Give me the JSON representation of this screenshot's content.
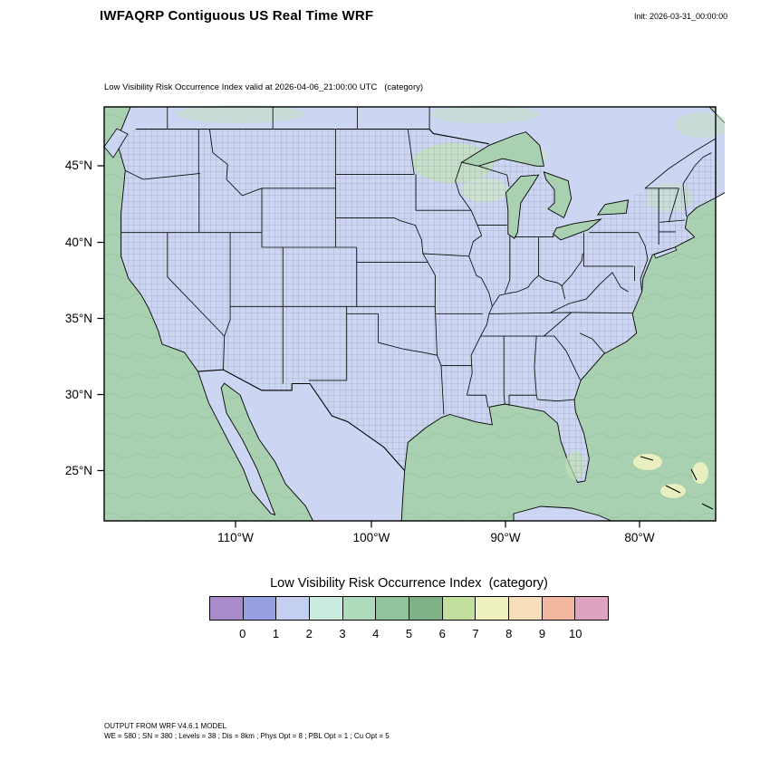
{
  "header": {
    "title": "IWFAQRP Contiguous US Real Time WRF",
    "init_label": "Init: 2026-03-31_00:00:00"
  },
  "map": {
    "subtitle": "Low Visibility Risk Occurrence Index valid at 2026-04-06_21:00:00 UTC   (category)",
    "y_tick_labels": [
      "45°N",
      "40°N",
      "35°N",
      "30°N",
      "25°N"
    ],
    "x_tick_labels": [
      "110°W",
      "100°W",
      "90°W",
      "80°W"
    ]
  },
  "map_colors": {
    "ocean": "#a9d1b1",
    "land": "#ccd5f1",
    "water": "#a9d1b1",
    "shallow_bank": "#e9efbe"
  },
  "legend": {
    "title": "Low Visibility Risk Occurrence Index  (category)",
    "tick_labels": [
      "0",
      "1",
      "2",
      "3",
      "4",
      "5",
      "6",
      "7",
      "8",
      "9",
      "10"
    ],
    "colors": [
      "#a98bc9",
      "#97a0e0",
      "#c4cff2",
      "#c9ecdf",
      "#aedbbc",
      "#90c49b",
      "#7fb287",
      "#c3df9e",
      "#eef0bd",
      "#f7debb",
      "#f2b79f",
      "#dfa2bf"
    ]
  },
  "footer": {
    "line1": "OUTPUT FROM WRF V4.6.1 MODEL",
    "line2": "WE = 580 ; SN = 380 ; Levels = 38 ; Dis = 8km ; Phys Opt = 8 ; PBL Opt = 1 ; Cu Opt = 5"
  }
}
